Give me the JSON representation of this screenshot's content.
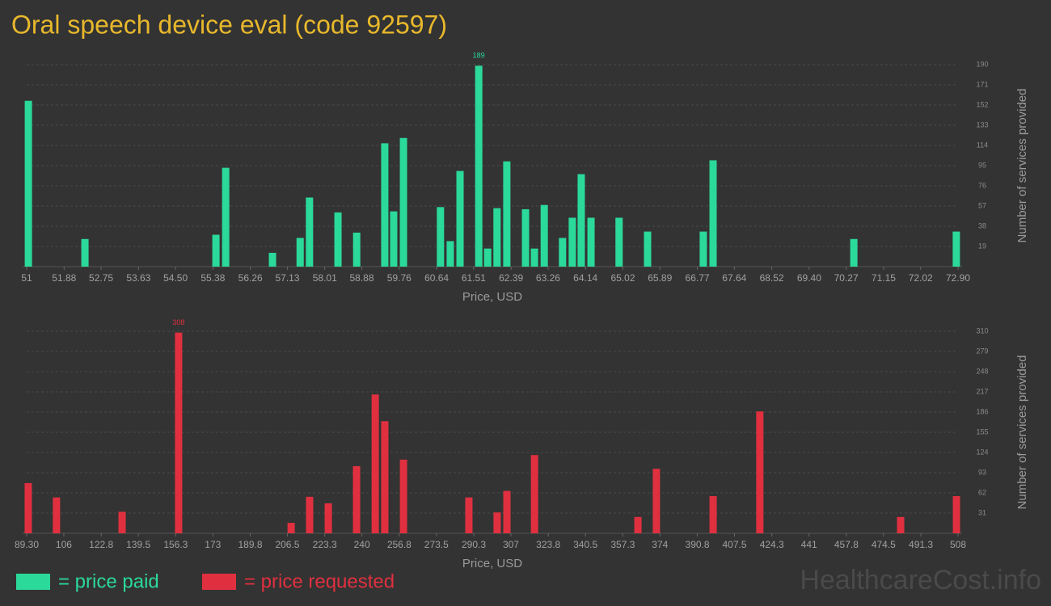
{
  "title": "Oral speech device eval (code 92597)",
  "watermark": "HealthcareCost.info",
  "chart_data": [
    {
      "type": "bar",
      "name": "= price paid",
      "color": "#2bd99b",
      "xlabel": "Price, USD",
      "ylabel": "Number of services provided",
      "x": [
        51.04,
        52.37,
        55.45,
        55.68,
        56.78,
        57.43,
        57.65,
        58.32,
        58.76,
        59.42,
        59.63,
        59.86,
        60.73,
        60.96,
        61.19,
        61.63,
        61.84,
        62.06,
        62.29,
        62.73,
        62.94,
        63.17,
        63.6,
        63.83,
        64.04,
        64.27,
        64.93,
        65.6,
        66.91,
        67.14,
        70.45,
        72.86
      ],
      "values": [
        156,
        26,
        30,
        93,
        13,
        27,
        65,
        51,
        32,
        116,
        52,
        121,
        56,
        24,
        90,
        189,
        17,
        55,
        99,
        54,
        17,
        58,
        27,
        46,
        87,
        46,
        46,
        33,
        33,
        100,
        26,
        33
      ],
      "xlim": [
        51,
        72.9
      ],
      "xticks": [
        51,
        51.88,
        52.75,
        53.63,
        {
          "value": 54.5,
          "label": "54.50"
        },
        55.38,
        56.26,
        57.13,
        58.01,
        58.88,
        59.76,
        60.64,
        61.51,
        62.39,
        63.26,
        64.14,
        65.02,
        65.89,
        66.77,
        67.64,
        68.52,
        {
          "value": 69.4,
          "label": "69.40"
        },
        70.27,
        71.15,
        72.02,
        {
          "value": 72.9,
          "label": "72.90"
        }
      ],
      "ylim": [
        0,
        190
      ],
      "yticks": [
        19,
        38,
        57,
        76,
        95,
        114,
        133,
        152,
        171,
        190
      ],
      "grid": true
    },
    {
      "type": "bar",
      "name": "= price requested",
      "color": "#e0303f",
      "xlabel": "Price, USD",
      "ylabel": "Number of services provided",
      "x": [
        90.0,
        102.7,
        132.2,
        157.6,
        208.2,
        216.5,
        224.9,
        237.6,
        246.0,
        250.3,
        258.7,
        288.1,
        300.8,
        305.2,
        317.6,
        364.1,
        372.4,
        397.9,
        418.9,
        482.2,
        507.3
      ],
      "values": [
        77,
        55,
        33,
        308,
        16,
        56,
        46,
        103,
        213,
        172,
        113,
        55,
        32,
        65,
        120,
        25,
        99,
        57,
        187,
        25,
        57
      ],
      "xlim": [
        89.3,
        508
      ],
      "xticks": [
        {
          "value": 89.3,
          "label": "89.30"
        },
        106,
        122.8,
        139.5,
        156.3,
        173,
        189.8,
        206.5,
        223.3,
        240,
        256.8,
        273.5,
        290.3,
        307,
        323.8,
        340.5,
        357.3,
        374,
        390.8,
        407.5,
        424.3,
        441,
        457.8,
        474.5,
        491.3,
        508
      ],
      "ylim": [
        0,
        310
      ],
      "yticks": [
        31,
        62,
        93,
        124,
        155,
        186,
        217,
        248,
        279,
        310
      ],
      "grid": true
    }
  ]
}
